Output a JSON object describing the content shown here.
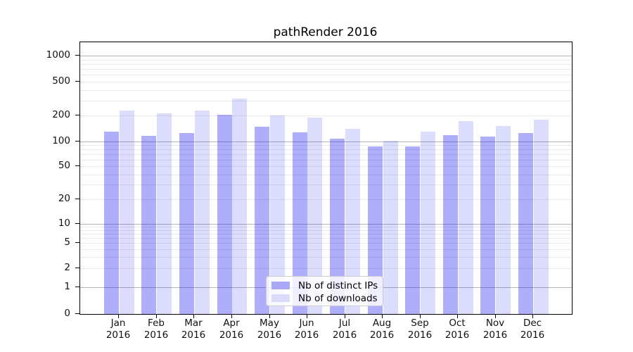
{
  "title": "pathRender 2016",
  "chart_data": {
    "type": "bar",
    "title": "pathRender 2016",
    "categories": [
      "Jan 2016",
      "Feb 2016",
      "Mar 2016",
      "Apr 2016",
      "May 2016",
      "Jun 2016",
      "Jul 2016",
      "Aug 2016",
      "Sep 2016",
      "Oct 2016",
      "Nov 2016",
      "Dec 2016"
    ],
    "series": [
      {
        "name": "Nb of distinct IPs",
        "values": [
          130,
          117,
          125,
          205,
          150,
          128,
          107,
          88,
          87,
          119,
          115,
          125
        ],
        "color": "#a8a8f6",
        "fill": "rgba(20,20,240,0.345)"
      },
      {
        "name": "Nb of downloads",
        "values": [
          230,
          215,
          232,
          320,
          202,
          190,
          140,
          102,
          130,
          172,
          152,
          180
        ],
        "color": "#dbdbfa",
        "fill": "rgba(20,20,240,0.15)"
      }
    ],
    "xlabel": "",
    "ylabel": "",
    "yscale": "symlog",
    "yticks": [
      0,
      1,
      2,
      5,
      10,
      20,
      50,
      100,
      200,
      500,
      1000
    ],
    "ylim": [
      0,
      1400
    ],
    "grid": "both",
    "legend_position": "lower center",
    "bar_layout": "grouped-pair"
  },
  "colors": {
    "major_grid": "#b5b5b5",
    "minor_grid": "#e9e9e9",
    "spine": "#000000",
    "tick_text": "#111111"
  }
}
